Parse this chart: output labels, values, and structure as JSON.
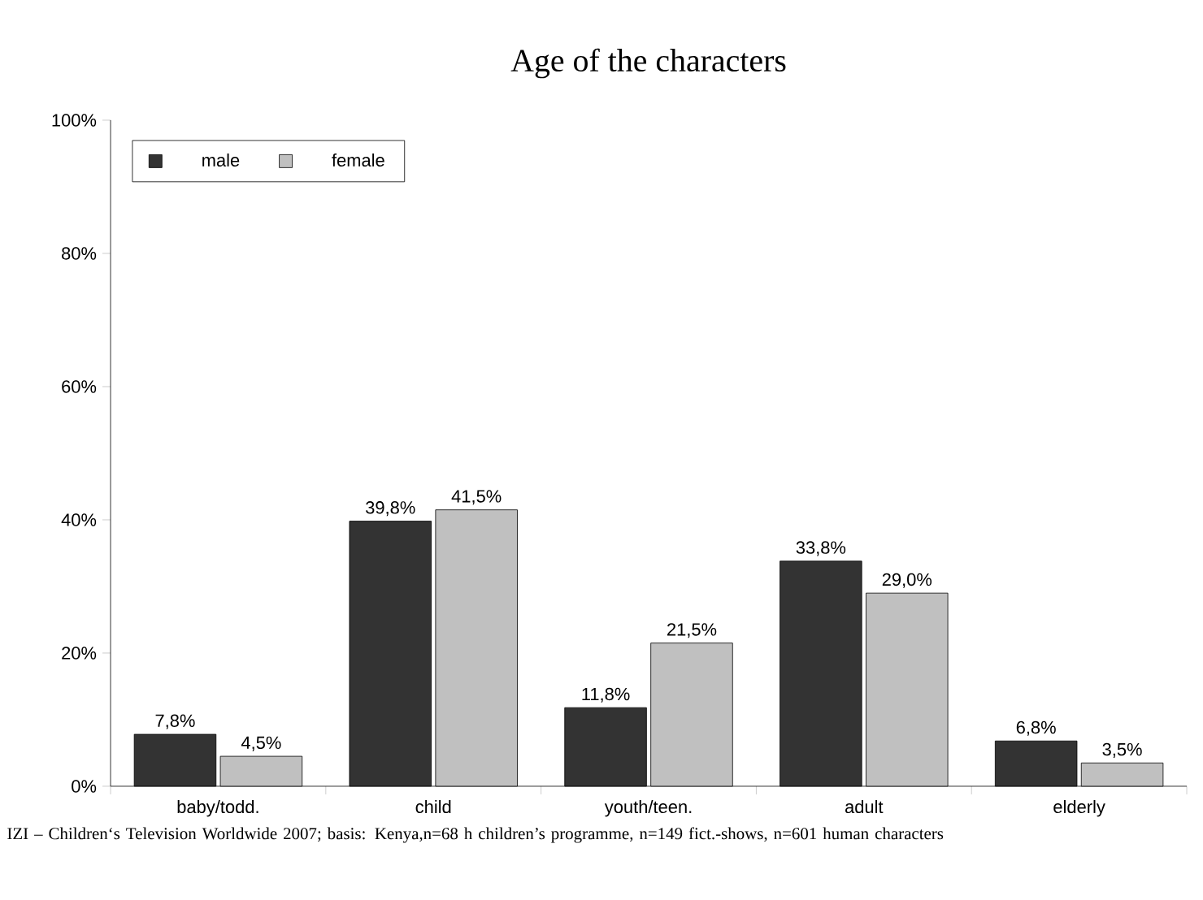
{
  "chart_data": {
    "type": "bar",
    "title": "Age of the characters",
    "categories": [
      "baby/todd.",
      "child",
      "youth/teen.",
      "adult",
      "elderly"
    ],
    "series": [
      {
        "name": "male",
        "color": "#333333",
        "values": [
          7.8,
          39.8,
          11.8,
          33.8,
          6.8
        ],
        "value_labels": [
          "7,8%",
          "39,8%",
          "11,8%",
          "33,8%",
          "6,8%"
        ]
      },
      {
        "name": "female",
        "color": "#c0c0c0",
        "values": [
          4.5,
          41.5,
          21.5,
          29.0,
          3.5
        ],
        "value_labels": [
          "4,5%",
          "41,5%",
          "21,5%",
          "29,0%",
          "3,5%"
        ]
      }
    ],
    "ylim": [
      0,
      100
    ],
    "yticks": [
      {
        "value": 0,
        "label": "0%"
      },
      {
        "value": 20,
        "label": "20%"
      },
      {
        "value": 40,
        "label": "40%"
      },
      {
        "value": 60,
        "label": "60%"
      },
      {
        "value": 80,
        "label": "80%"
      },
      {
        "value": 100,
        "label": "100%"
      }
    ],
    "legend": "top left",
    "grid": false,
    "annotations": [
      "IZI – Children‘s Television Worldwide 2007; basis: Kenya,n=68 h children’s programme, n=149 fict.-shows, n=601 human characters"
    ]
  }
}
